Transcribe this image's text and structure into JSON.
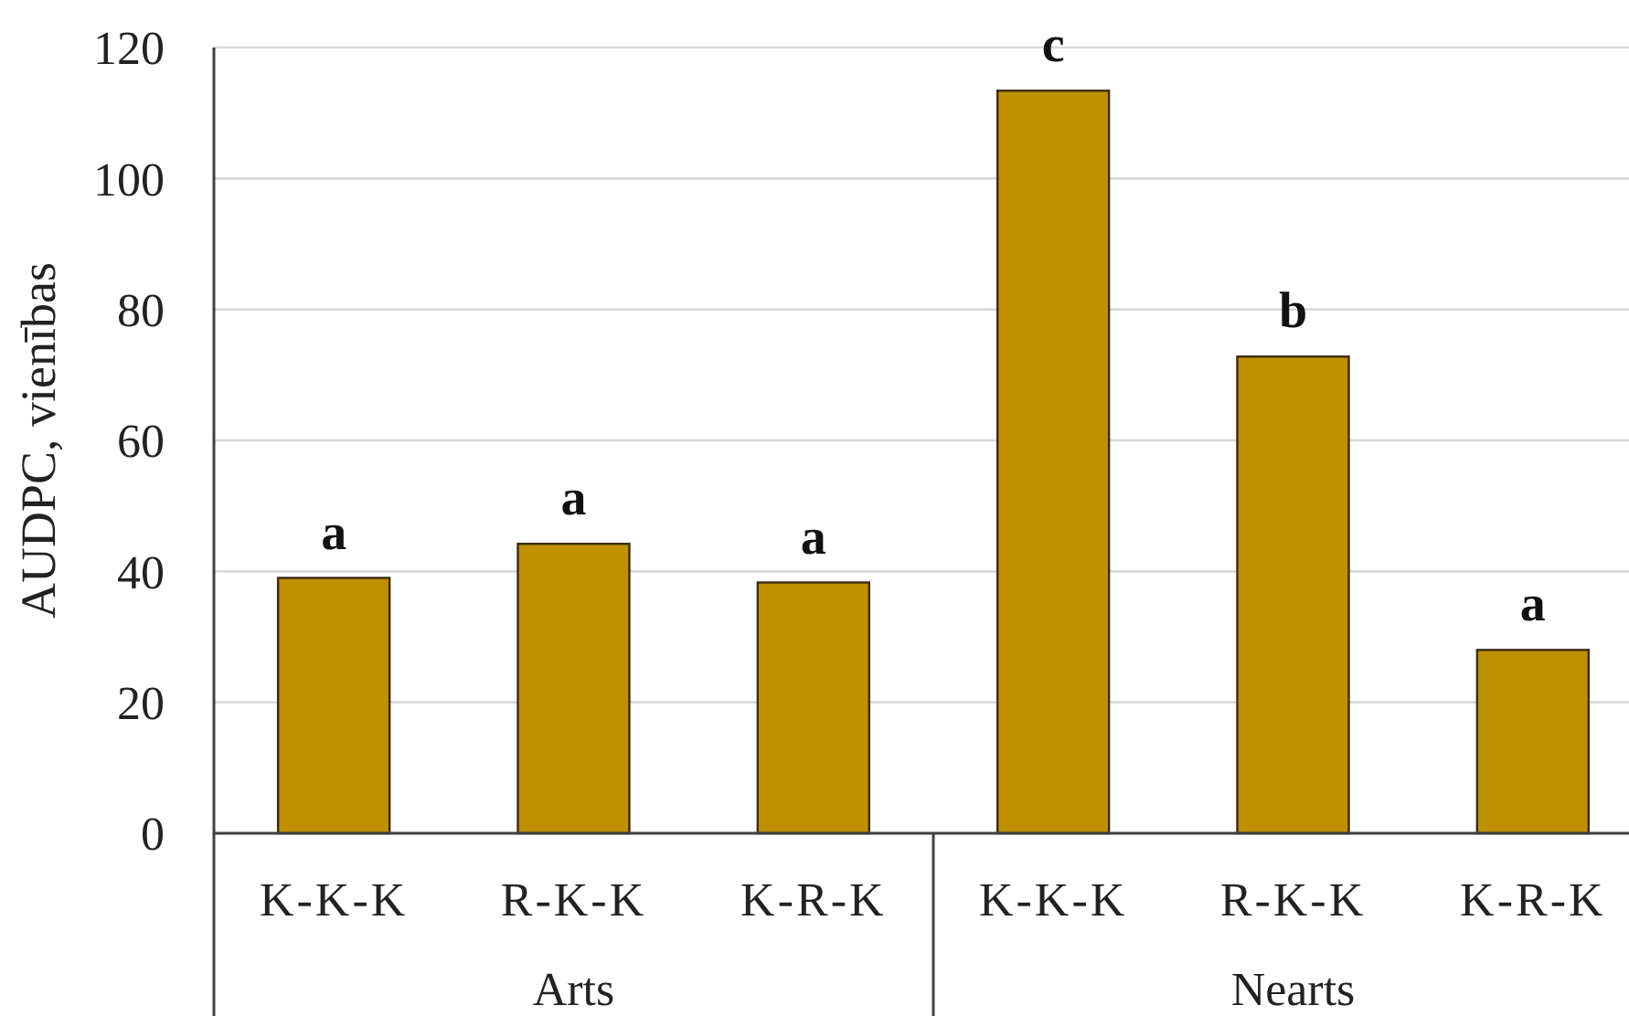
{
  "chart_data": {
    "type": "bar",
    "ylabel": "AUDPC, vienības",
    "categories": [
      "K-K-K",
      "R-K-K",
      "K-R-K",
      "K-K-K",
      "R-K-K",
      "K-R-K"
    ],
    "values": [
      39,
      44.2,
      38.3,
      113.4,
      72.8,
      28
    ],
    "color": "#bf9000",
    "value_labels": [
      "a",
      "a",
      "a",
      "c",
      "b",
      "a"
    ],
    "annotations": [
      "Arts",
      "Nearts"
    ],
    "ylim": [
      0,
      120
    ],
    "yticks": [
      0,
      20,
      40,
      60,
      80,
      100,
      120
    ],
    "grid": "y"
  }
}
